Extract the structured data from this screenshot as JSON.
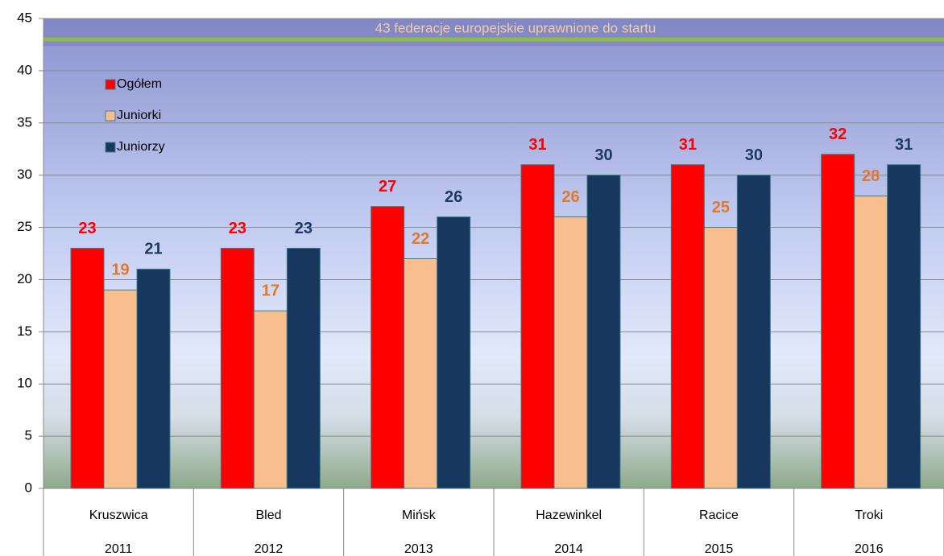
{
  "chart_data": {
    "type": "bar",
    "categories": [
      "Kruszwica",
      "Bled",
      "Mińsk",
      "Hazewinkel",
      "Racice",
      "Troki"
    ],
    "subcategories": [
      "2011",
      "2012",
      "2013",
      "2014",
      "2015",
      "2016"
    ],
    "series": [
      {
        "name": "Ogółem",
        "color": "#ff0000",
        "label_color": "#ff0000",
        "values": [
          23,
          23,
          27,
          31,
          31,
          32
        ]
      },
      {
        "name": "Juniorki",
        "color": "#f9be8e",
        "label_color": "#e2782a",
        "values": [
          19,
          17,
          22,
          26,
          25,
          28
        ]
      },
      {
        "name": "Juniorzy",
        "color": "#17375e",
        "label_color": "#1f3864",
        "values": [
          21,
          23,
          26,
          30,
          30,
          31
        ]
      }
    ],
    "reference_line": {
      "value": 43,
      "label": "43 federacje europejskie uprawnione do startu",
      "color": "#8fbc45"
    },
    "ylim": [
      0,
      45
    ],
    "yticks": [
      0,
      5,
      10,
      15,
      20,
      25,
      30,
      35,
      40,
      45
    ],
    "grid": true,
    "legend": "upper left"
  }
}
